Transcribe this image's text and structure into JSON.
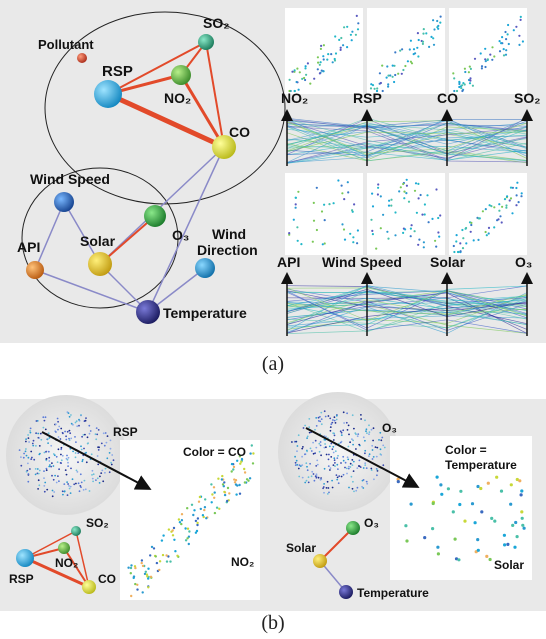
{
  "figure": {
    "panel_a": {
      "caption": "(a)",
      "graph_labels": {
        "pollutant": "Pollutant",
        "so2": "SO₂",
        "rsp": "RSP",
        "no2": "NO₂",
        "co": "CO",
        "wind_speed": "Wind Speed",
        "api": "API",
        "solar": "Solar",
        "o3": "O₃",
        "wind_direction_1": "Wind",
        "wind_direction_2": "Direction",
        "temperature": "Temperature"
      },
      "pcp_top_axes": [
        "NO₂",
        "RSP",
        "CO",
        "SO₂"
      ],
      "pcp_bottom_axes": [
        "API",
        "Wind Speed",
        "Solar",
        "O₃"
      ]
    },
    "panel_b": {
      "caption": "(b)",
      "left": {
        "y_axis": "RSP",
        "x_axis": "NO₂",
        "color_note": "Color = CO",
        "nodes": {
          "so2": "SO₂",
          "rsp": "RSP",
          "no2": "NO₂",
          "co": "CO"
        }
      },
      "right": {
        "y_axis": "O₃",
        "x_axis": "Solar",
        "color_note_1": "Color =",
        "color_note_2": "Temperature",
        "nodes": {
          "o3": "O₃",
          "solar": "Solar",
          "temperature": "Temperature"
        }
      }
    }
  },
  "colors": {
    "panel_bg": "#e9e9e9",
    "edge_red": "#e24a2a",
    "edge_blue": "#8a8ac8",
    "rsp": "#1aa6d8",
    "no2": "#5cb03c",
    "co": "#d8dc2a",
    "so2": "#2a9a78",
    "pollutant": "#c83a22",
    "wind_speed": "#1e5ab8",
    "api": "#e07a1e",
    "solar": "#e8c21e",
    "o3": "#2a9a3a",
    "wind_direction": "#1a94d8",
    "temperature": "#2a2a8a"
  }
}
